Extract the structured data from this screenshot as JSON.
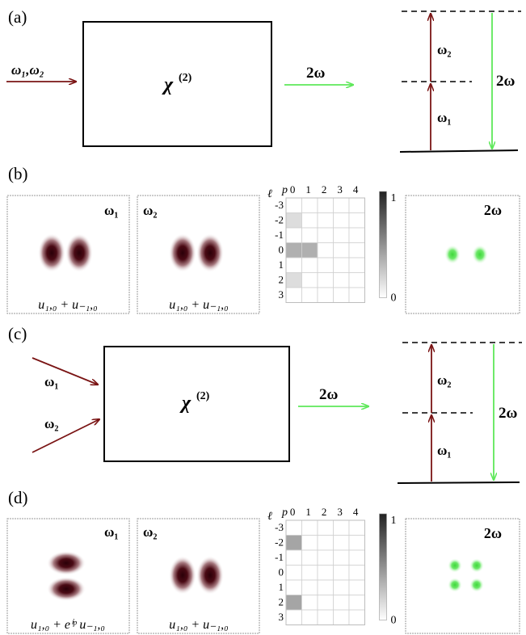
{
  "colors": {
    "beam_red": "#7a1414",
    "beam_green": "#5ee85a",
    "grid_fill_light": "#dcdcdc",
    "grid_fill_mid": "#a8a8a8",
    "grid_fill_dark": "#999999"
  },
  "panel_a": {
    "label": "(a)",
    "input_label": "ω₁,ω₂",
    "chi_label": "χ",
    "chi_superscript": "(2)",
    "output_label": "2ω",
    "levels": {
      "w1": "ω₁",
      "w2": "ω₂",
      "out": "2ω"
    }
  },
  "panel_b": {
    "label": "(b)",
    "mode1": {
      "tag": "ω₁",
      "formula_main": "u",
      "formula_text": "u₁,₀ + u₋₁,₀"
    },
    "mode2": {
      "tag": "ω₂",
      "formula_text": "u₁,₀ + u₋₁,₀"
    },
    "output_tag": "2ω",
    "grid": {
      "p_label": "p",
      "l_label": "ℓ",
      "p_ticks": [
        "0",
        "1",
        "2",
        "3",
        "4"
      ],
      "l_ticks": [
        "-3",
        "-2",
        "-1",
        "0",
        "1",
        "2",
        "3"
      ],
      "filled_cells": [
        {
          "l": "-2",
          "p": 0,
          "level": 0.15
        },
        {
          "l": "0",
          "p": 0,
          "level": 0.35
        },
        {
          "l": "0",
          "p": 1,
          "level": 0.35
        },
        {
          "l": "2",
          "p": 0,
          "level": 0.15
        }
      ],
      "colorbar_max": "1",
      "colorbar_min": "0"
    }
  },
  "panel_c": {
    "label": "(c)",
    "input1": "ω₁",
    "input2": "ω₂",
    "chi_label": "χ",
    "chi_superscript": "(2)",
    "output_label": "2ω",
    "levels": {
      "w1": "ω₁",
      "w2": "ω₂",
      "out": "2ω"
    }
  },
  "panel_d": {
    "label": "(d)",
    "mode1": {
      "tag": "ω₁",
      "formula_text": "u₁,₀ + eⁱᵖ u₋₁,₀"
    },
    "mode2": {
      "tag": "ω₂",
      "formula_text": "u₁,₀ + u₋₁,₀"
    },
    "output_tag": "2ω",
    "grid": {
      "p_label": "p",
      "l_label": "ℓ",
      "p_ticks": [
        "0",
        "1",
        "2",
        "3",
        "4"
      ],
      "l_ticks": [
        "-3",
        "-2",
        "-1",
        "0",
        "1",
        "2",
        "3"
      ],
      "filled_cells": [
        {
          "l": "-2",
          "p": 0,
          "level": 0.4
        },
        {
          "l": "2",
          "p": 0,
          "level": 0.4
        }
      ],
      "colorbar_max": "1",
      "colorbar_min": "0"
    }
  }
}
